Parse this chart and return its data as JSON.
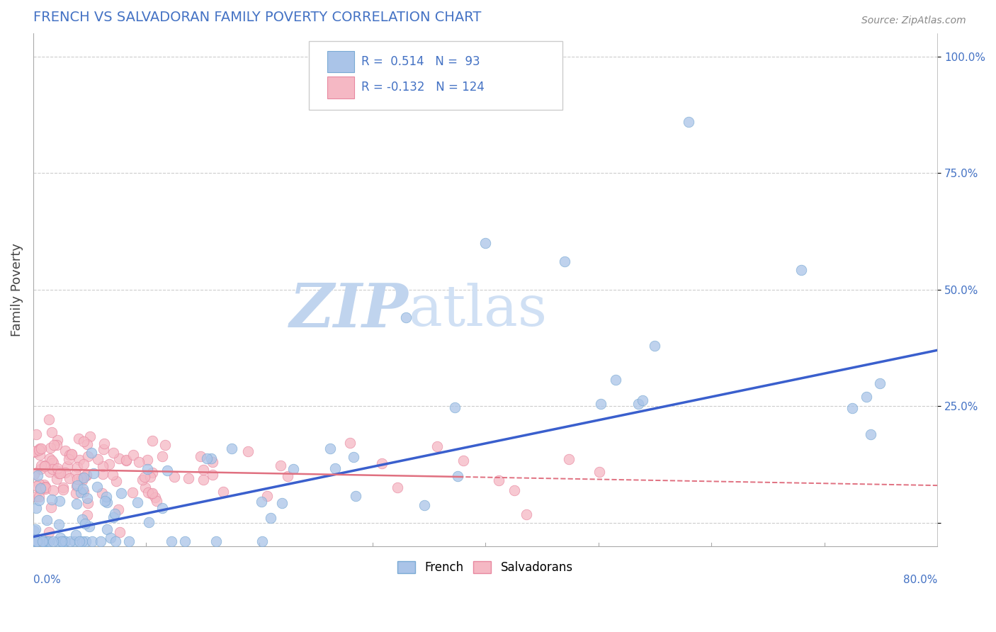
{
  "title": "FRENCH VS SALVADORAN FAMILY POVERTY CORRELATION CHART",
  "source": "Source: ZipAtlas.com",
  "ylabel": "Family Poverty",
  "xlim": [
    0.0,
    0.8
  ],
  "ylim": [
    -0.05,
    1.05
  ],
  "yticks": [
    0.0,
    0.25,
    0.5,
    0.75,
    1.0
  ],
  "ytick_labels": [
    "",
    "25.0%",
    "50.0%",
    "75.0%",
    "100.0%"
  ],
  "french_color": "#aac4e8",
  "french_edge": "#7aaad4",
  "salvadoran_color": "#f5b8c4",
  "salvadoran_edge": "#e888a0",
  "trend_french_color": "#3a5fcd",
  "trend_salvadoran_color": "#e07080",
  "R_french": 0.514,
  "N_french": 93,
  "R_salvadoran": -0.132,
  "N_salvadoran": 124,
  "background_color": "#ffffff",
  "grid_color": "#cccccc",
  "title_color": "#4472c4",
  "watermark_color_zip": "#c0d4ee",
  "watermark_color_atlas": "#d0e0f4",
  "legend_text_color": "#4472c4",
  "french_seed": 12,
  "salvadoran_seed": 99,
  "trend_fr_x0": 0.0,
  "trend_fr_y0": -0.03,
  "trend_fr_x1": 0.8,
  "trend_fr_y1": 0.37,
  "trend_sv_x0": 0.0,
  "trend_sv_y0": 0.115,
  "trend_sv_x1": 0.8,
  "trend_sv_y1": 0.08,
  "trend_sv_solid_end": 0.38
}
